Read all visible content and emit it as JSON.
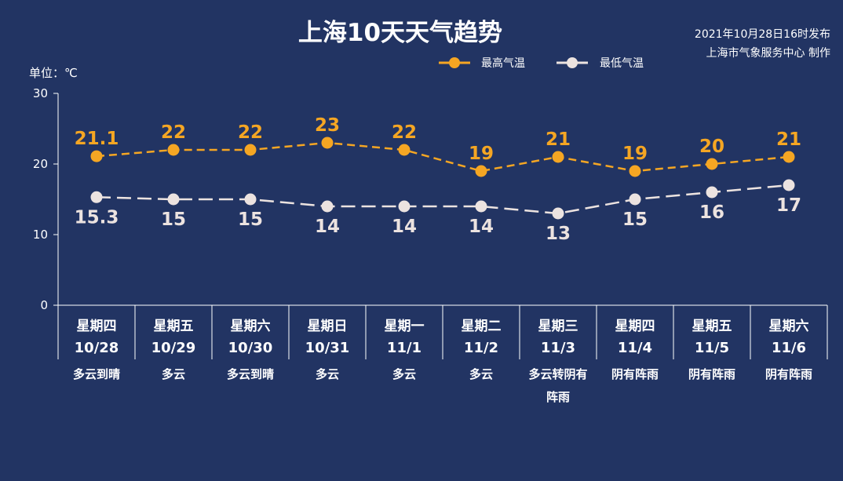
{
  "header": {
    "title": "上海10天天气趋势",
    "publish_time": "2021年10月28日16时发布",
    "publisher": "上海市气象服务中心 制作"
  },
  "colors": {
    "background": "#223463",
    "high": "#f5a623",
    "low": "#ece3e0",
    "axis": "#ffffff"
  },
  "chart_data": {
    "type": "line",
    "unit_label": "单位：℃",
    "ylim": [
      0,
      30
    ],
    "yticks": [
      0,
      10,
      20,
      30
    ],
    "grid": false,
    "legend_position": "top-right",
    "categories": [
      {
        "day": "星期四",
        "date": "10/28",
        "weather": [
          "多云到晴"
        ]
      },
      {
        "day": "星期五",
        "date": "10/29",
        "weather": [
          "多云"
        ]
      },
      {
        "day": "星期六",
        "date": "10/30",
        "weather": [
          "多云到晴"
        ]
      },
      {
        "day": "星期日",
        "date": "10/31",
        "weather": [
          "多云"
        ]
      },
      {
        "day": "星期一",
        "date": "11/1",
        "weather": [
          "多云"
        ]
      },
      {
        "day": "星期二",
        "date": "11/2",
        "weather": [
          "多云"
        ]
      },
      {
        "day": "星期三",
        "date": "11/3",
        "weather": [
          "多云转阴有",
          "阵雨"
        ]
      },
      {
        "day": "星期四",
        "date": "11/4",
        "weather": [
          "阴有阵雨"
        ]
      },
      {
        "day": "星期五",
        "date": "11/5",
        "weather": [
          "阴有阵雨"
        ]
      },
      {
        "day": "星期六",
        "date": "11/6",
        "weather": [
          "阴有阵雨"
        ]
      }
    ],
    "series": [
      {
        "name": "最高气温",
        "key": "high",
        "values": [
          21.1,
          22,
          22,
          23,
          22,
          19,
          21,
          19,
          20,
          21
        ]
      },
      {
        "name": "最低气温",
        "key": "low",
        "values": [
          15.3,
          15,
          15,
          14,
          14,
          14,
          13,
          15,
          16,
          17
        ]
      }
    ]
  }
}
